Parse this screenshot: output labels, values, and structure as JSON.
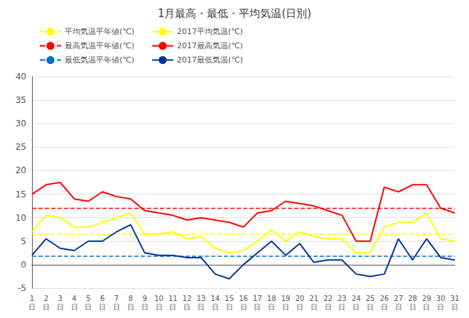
{
  "chart_data": {
    "type": "line",
    "title": "1月最高・最低・平均気温(日別)",
    "categories": [
      "1\n日",
      "2\n日",
      "3\n日",
      "4\n日",
      "5\n日",
      "6\n日",
      "7\n日",
      "8\n日",
      "9\n日",
      "10\n日",
      "11\n日",
      "12\n日",
      "13\n日",
      "14\n日",
      "15\n日",
      "16\n日",
      "17\n日",
      "18\n日",
      "19\n日",
      "20\n日",
      "21\n日",
      "22\n日",
      "23\n日",
      "24\n日",
      "25\n日",
      "26\n日",
      "27\n日",
      "28\n日",
      "29\n日",
      "30\n日",
      "31\n日"
    ],
    "series": [
      {
        "name": "平均気温平年値(℃)",
        "color": "#ffff00",
        "line_style": "dashed",
        "values": [
          6.5,
          6.5,
          6.5,
          6.5,
          6.5,
          6.5,
          6.5,
          6.5,
          6.5,
          6.5,
          6.5,
          6.5,
          6.5,
          6.5,
          6.5,
          6.5,
          6.5,
          6.5,
          6.5,
          6.5,
          6.5,
          6.5,
          6.5,
          6.5,
          6.5,
          6.5,
          6.5,
          6.5,
          6.5,
          6.5,
          6.5
        ]
      },
      {
        "name": "2017平均気温(℃)",
        "color": "#ffff00",
        "line_style": "solid",
        "values": [
          7,
          10.5,
          10,
          8,
          8,
          9,
          10,
          11,
          6.5,
          6.5,
          7,
          5.5,
          6,
          3.5,
          2.5,
          3,
          5,
          7.5,
          5,
          7,
          6,
          5.5,
          5.5,
          2.5,
          2.5,
          8,
          9,
          9,
          11,
          5.5,
          5
        ]
      },
      {
        "name": "最高気温平年値(℃)",
        "color": "#ff0000",
        "line_style": "dashed",
        "values": [
          12.0,
          12.0,
          12.0,
          12.0,
          12.0,
          12.0,
          12.0,
          12.0,
          12.0,
          12.0,
          12.0,
          12.0,
          12.0,
          12.0,
          12.0,
          12.0,
          12.0,
          12.0,
          12.0,
          12.0,
          12.0,
          12.0,
          12.0,
          12.0,
          12.0,
          12.0,
          12.0,
          12.0,
          12.0,
          12.0,
          12.0
        ]
      },
      {
        "name": "2017最高気温(℃)",
        "color": "#ff0000",
        "line_style": "solid",
        "values": [
          15,
          17,
          17.5,
          14,
          13.5,
          15.5,
          14.5,
          14,
          11.5,
          11,
          10.5,
          9.5,
          10,
          9.5,
          9,
          8,
          11,
          11.5,
          13.5,
          13,
          12.5,
          11.5,
          10.5,
          5,
          5,
          16.5,
          15.5,
          17,
          17,
          12,
          11
        ]
      },
      {
        "name": "最低気温平年値(℃)",
        "color": "#0070c0",
        "line_style": "dashed",
        "values": [
          1.8,
          1.8,
          1.8,
          1.8,
          1.8,
          1.8,
          1.8,
          1.8,
          1.8,
          1.8,
          1.8,
          1.8,
          1.8,
          1.8,
          1.8,
          1.8,
          1.8,
          1.8,
          1.8,
          1.8,
          1.8,
          1.8,
          1.8,
          1.8,
          1.8,
          1.8,
          1.8,
          1.8,
          1.8,
          1.8,
          1.8
        ]
      },
      {
        "name": "2017最低気温(℃)",
        "color": "#003399",
        "line_style": "solid",
        "values": [
          2,
          5.5,
          3.5,
          3,
          5,
          5,
          7,
          8.5,
          2.5,
          2,
          2,
          1.5,
          1.5,
          -2,
          -3,
          0,
          2.5,
          5,
          2,
          4.5,
          0.5,
          1,
          1,
          -2,
          -2.5,
          -2,
          5.5,
          1,
          5.5,
          1.5,
          1
        ]
      }
    ],
    "ylim": [
      -5,
      40
    ],
    "yticks": [
      -5,
      0,
      5,
      10,
      15,
      20,
      25,
      30,
      35,
      40
    ],
    "grid": true,
    "legend": "upper left"
  }
}
